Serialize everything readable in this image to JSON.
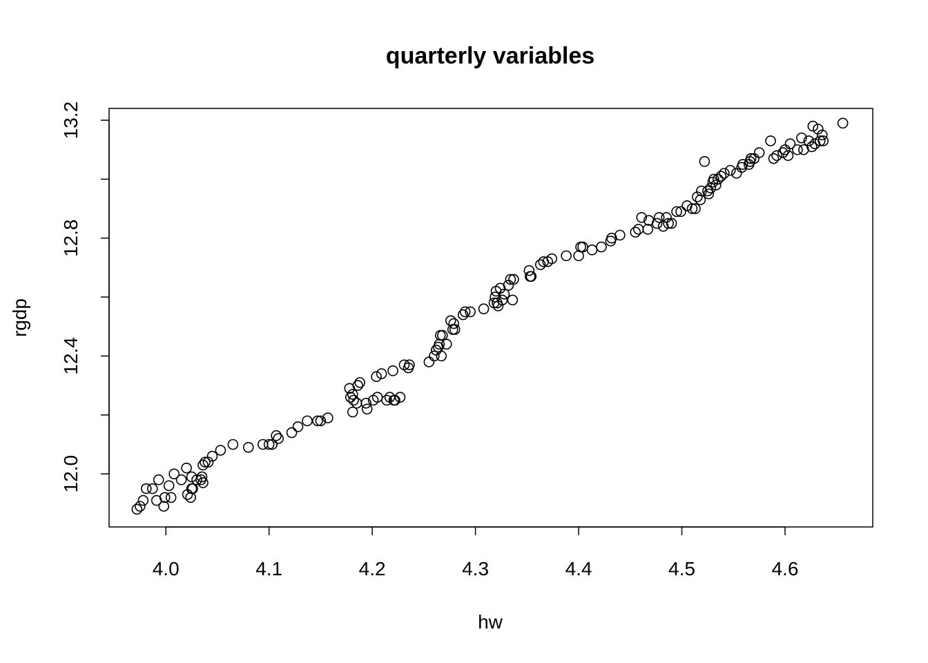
{
  "chart_data": {
    "type": "scatter",
    "title": "quarterly variables",
    "xlabel": "hw",
    "ylabel": "rgdp",
    "xlim": [
      3.945,
      4.685
    ],
    "ylim": [
      11.82,
      13.24
    ],
    "xticks": [
      4.0,
      4.1,
      4.2,
      4.3,
      4.4,
      4.5,
      4.6
    ],
    "xtick_labels": [
      "4.0",
      "4.1",
      "4.2",
      "4.3",
      "4.4",
      "4.5",
      "4.6"
    ],
    "yticks": [
      12.0,
      12.2,
      12.4,
      12.6,
      12.8,
      13.0,
      13.2
    ],
    "yticks_labeled": [
      12.0,
      12.4,
      12.8,
      13.2
    ],
    "ytick_labels": [
      "12.0",
      "12.4",
      "12.8",
      "13.2"
    ],
    "grid": false,
    "marker": "open-circle",
    "points": [
      [
        3.972,
        11.88
      ],
      [
        3.975,
        11.89
      ],
      [
        3.978,
        11.91
      ],
      [
        3.981,
        11.95
      ],
      [
        3.987,
        11.95
      ],
      [
        3.991,
        11.91
      ],
      [
        3.993,
        11.98
      ],
      [
        3.998,
        11.89
      ],
      [
        3.999,
        11.92
      ],
      [
        4.003,
        11.96
      ],
      [
        4.005,
        11.92
      ],
      [
        4.008,
        12.0
      ],
      [
        4.015,
        11.98
      ],
      [
        4.02,
        12.02
      ],
      [
        4.021,
        11.93
      ],
      [
        4.024,
        11.92
      ],
      [
        4.025,
        11.99
      ],
      [
        4.025,
        11.95
      ],
      [
        4.026,
        11.95
      ],
      [
        4.03,
        11.98
      ],
      [
        4.034,
        11.98
      ],
      [
        4.035,
        11.99
      ],
      [
        4.036,
        11.97
      ],
      [
        4.036,
        12.03
      ],
      [
        4.038,
        12.04
      ],
      [
        4.041,
        12.04
      ],
      [
        4.045,
        12.06
      ],
      [
        4.053,
        12.08
      ],
      [
        4.065,
        12.1
      ],
      [
        4.08,
        12.09
      ],
      [
        4.094,
        12.1
      ],
      [
        4.1,
        12.1
      ],
      [
        4.103,
        12.1
      ],
      [
        4.107,
        12.13
      ],
      [
        4.109,
        12.12
      ],
      [
        4.122,
        12.14
      ],
      [
        4.128,
        12.16
      ],
      [
        4.137,
        12.18
      ],
      [
        4.147,
        12.18
      ],
      [
        4.15,
        12.18
      ],
      [
        4.157,
        12.19
      ],
      [
        4.178,
        12.29
      ],
      [
        4.179,
        12.26
      ],
      [
        4.181,
        12.27
      ],
      [
        4.181,
        12.21
      ],
      [
        4.182,
        12.25
      ],
      [
        4.185,
        12.24
      ],
      [
        4.186,
        12.3
      ],
      [
        4.188,
        12.31
      ],
      [
        4.194,
        12.24
      ],
      [
        4.195,
        12.22
      ],
      [
        4.201,
        12.25
      ],
      [
        4.204,
        12.33
      ],
      [
        4.205,
        12.26
      ],
      [
        4.209,
        12.34
      ],
      [
        4.214,
        12.25
      ],
      [
        4.217,
        12.26
      ],
      [
        4.22,
        12.35
      ],
      [
        4.221,
        12.25
      ],
      [
        4.222,
        12.25
      ],
      [
        4.227,
        12.26
      ],
      [
        4.231,
        12.37
      ],
      [
        4.235,
        12.36
      ],
      [
        4.236,
        12.37
      ],
      [
        4.255,
        12.38
      ],
      [
        4.26,
        12.4
      ],
      [
        4.262,
        12.42
      ],
      [
        4.264,
        12.43
      ],
      [
        4.265,
        12.44
      ],
      [
        4.266,
        12.47
      ],
      [
        4.267,
        12.4
      ],
      [
        4.268,
        12.47
      ],
      [
        4.272,
        12.44
      ],
      [
        4.276,
        12.52
      ],
      [
        4.278,
        12.49
      ],
      [
        4.279,
        12.51
      ],
      [
        4.28,
        12.49
      ],
      [
        4.288,
        12.54
      ],
      [
        4.29,
        12.55
      ],
      [
        4.295,
        12.55
      ],
      [
        4.308,
        12.56
      ],
      [
        4.318,
        12.58
      ],
      [
        4.319,
        12.6
      ],
      [
        4.32,
        12.62
      ],
      [
        4.321,
        12.58
      ],
      [
        4.322,
        12.57
      ],
      [
        4.324,
        12.63
      ],
      [
        4.326,
        12.59
      ],
      [
        4.328,
        12.61
      ],
      [
        4.332,
        12.64
      ],
      [
        4.334,
        12.66
      ],
      [
        4.337,
        12.66
      ],
      [
        4.336,
        12.59
      ],
      [
        4.352,
        12.69
      ],
      [
        4.353,
        12.67
      ],
      [
        4.354,
        12.67
      ],
      [
        4.363,
        12.71
      ],
      [
        4.366,
        12.72
      ],
      [
        4.37,
        12.72
      ],
      [
        4.374,
        12.73
      ],
      [
        4.388,
        12.74
      ],
      [
        4.4,
        12.74
      ],
      [
        4.402,
        12.77
      ],
      [
        4.404,
        12.77
      ],
      [
        4.413,
        12.76
      ],
      [
        4.422,
        12.77
      ],
      [
        4.431,
        12.79
      ],
      [
        4.432,
        12.8
      ],
      [
        4.44,
        12.81
      ],
      [
        4.455,
        12.82
      ],
      [
        4.458,
        12.83
      ],
      [
        4.461,
        12.87
      ],
      [
        4.467,
        12.83
      ],
      [
        4.468,
        12.86
      ],
      [
        4.476,
        12.85
      ],
      [
        4.478,
        12.87
      ],
      [
        4.482,
        12.84
      ],
      [
        4.485,
        12.87
      ],
      [
        4.487,
        12.85
      ],
      [
        4.49,
        12.85
      ],
      [
        4.495,
        12.89
      ],
      [
        4.499,
        12.89
      ],
      [
        4.505,
        12.91
      ],
      [
        4.51,
        12.9
      ],
      [
        4.513,
        12.9
      ],
      [
        4.515,
        12.94
      ],
      [
        4.518,
        12.93
      ],
      [
        4.519,
        12.96
      ],
      [
        4.522,
        13.06
      ],
      [
        4.525,
        12.96
      ],
      [
        4.526,
        12.95
      ],
      [
        4.528,
        12.97
      ],
      [
        4.53,
        12.99
      ],
      [
        4.531,
        13.0
      ],
      [
        4.533,
        12.98
      ],
      [
        4.535,
        13.0
      ],
      [
        4.538,
        13.01
      ],
      [
        4.541,
        13.02
      ],
      [
        4.547,
        13.03
      ],
      [
        4.553,
        13.02
      ],
      [
        4.558,
        13.04
      ],
      [
        4.559,
        13.05
      ],
      [
        4.565,
        13.05
      ],
      [
        4.566,
        13.06
      ],
      [
        4.567,
        13.07
      ],
      [
        4.57,
        13.07
      ],
      [
        4.575,
        13.09
      ],
      [
        4.586,
        13.13
      ],
      [
        4.589,
        13.07
      ],
      [
        4.592,
        13.08
      ],
      [
        4.598,
        13.09
      ],
      [
        4.6,
        13.1
      ],
      [
        4.603,
        13.08
      ],
      [
        4.605,
        13.12
      ],
      [
        4.612,
        13.1
      ],
      [
        4.616,
        13.14
      ],
      [
        4.618,
        13.1
      ],
      [
        4.623,
        13.13
      ],
      [
        4.626,
        13.11
      ],
      [
        4.627,
        13.18
      ],
      [
        4.629,
        13.12
      ],
      [
        4.632,
        13.17
      ],
      [
        4.634,
        13.13
      ],
      [
        4.636,
        13.15
      ],
      [
        4.637,
        13.13
      ],
      [
        4.656,
        13.19
      ]
    ]
  }
}
